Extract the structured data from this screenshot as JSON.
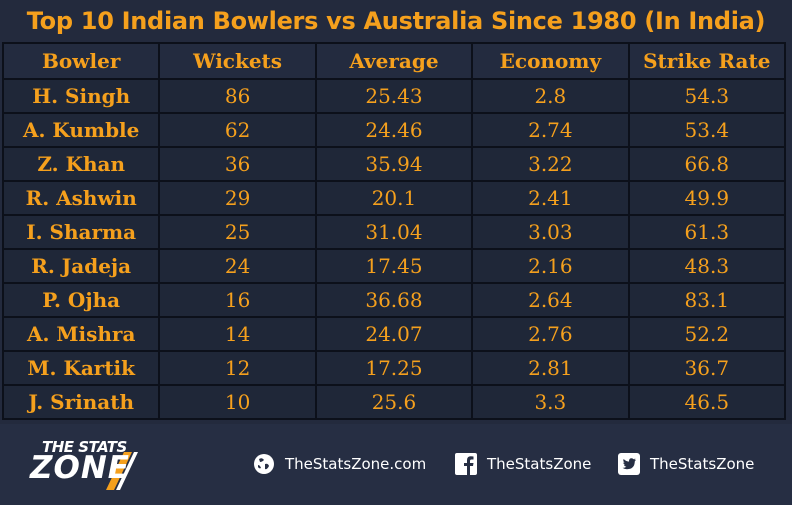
{
  "chart_data": {
    "type": "table",
    "title": "Top 10 Indian Bowlers vs Australia Since 1980 (In India)",
    "columns": [
      "Bowler",
      "Wickets",
      "Average",
      "Economy",
      "Strike Rate"
    ],
    "rows": [
      [
        "H. Singh",
        "86",
        "25.43",
        "2.8",
        "54.3"
      ],
      [
        "A. Kumble",
        "62",
        "24.46",
        "2.74",
        "53.4"
      ],
      [
        "Z. Khan",
        "36",
        "35.94",
        "3.22",
        "66.8"
      ],
      [
        "R. Ashwin",
        "29",
        "20.1",
        "2.41",
        "49.9"
      ],
      [
        "I. Sharma",
        "25",
        "31.04",
        "3.03",
        "61.3"
      ],
      [
        "R. Jadeja",
        "24",
        "17.45",
        "2.16",
        "48.3"
      ],
      [
        "P. Ojha",
        "16",
        "36.68",
        "2.64",
        "83.1"
      ],
      [
        "A. Mishra",
        "14",
        "24.07",
        "2.76",
        "52.2"
      ],
      [
        "M. Kartik",
        "12",
        "17.25",
        "2.81",
        "36.7"
      ],
      [
        "J. Srinath",
        "10",
        "25.6",
        "3.3",
        "46.5"
      ]
    ]
  },
  "branding": {
    "logo_line1": "THE STATS",
    "logo_line2": "ZONE"
  },
  "social": {
    "website": "TheStatsZone.com",
    "facebook": "TheStatsZone",
    "twitter": "TheStatsZone",
    "website_icon": "globe-icon",
    "facebook_icon": "facebook-icon",
    "twitter_icon": "twitter-icon"
  },
  "colors": {
    "background": "#232a3d",
    "accent": "#f5a01d",
    "table_border": "#0c101a"
  }
}
